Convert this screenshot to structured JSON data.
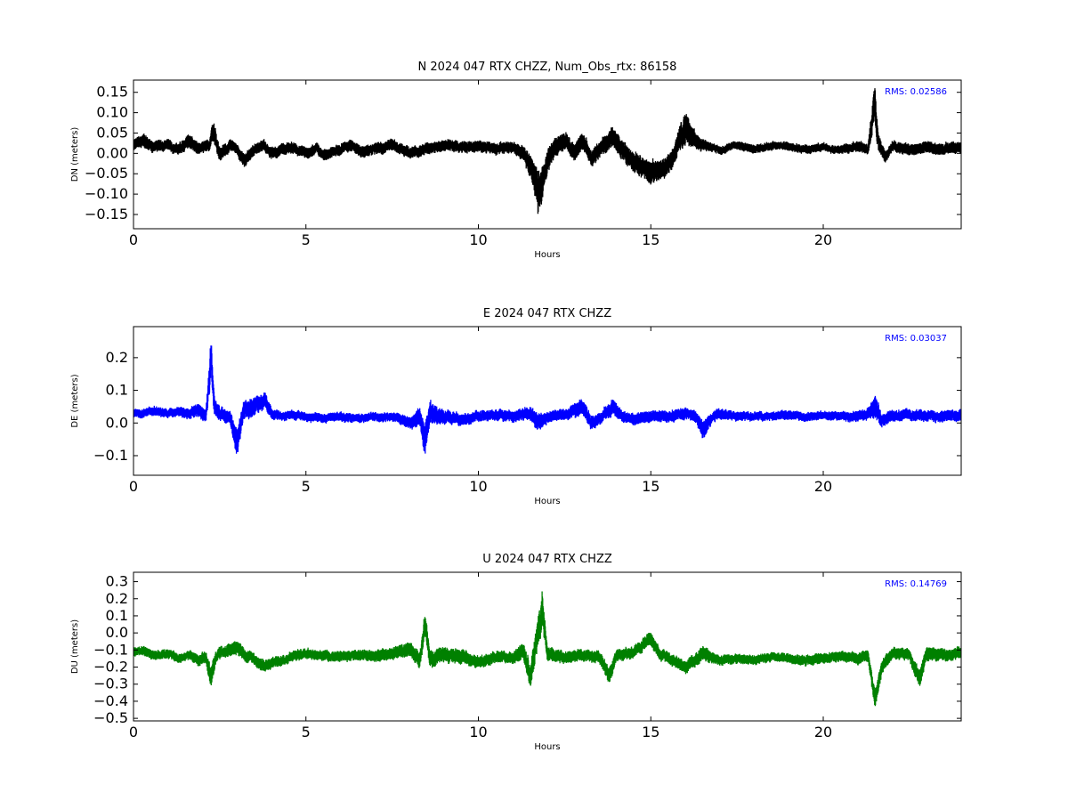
{
  "chart_data": [
    {
      "type": "scatter",
      "title": "N 2024 047 RTX  CHZZ, Num_Obs_rtx: 86158",
      "xlabel": "Hours",
      "ylabel": "DN (meters)",
      "xlim": [
        0,
        24
      ],
      "ylim": [
        -0.185,
        0.18
      ],
      "xticks": [
        0,
        5,
        10,
        15,
        20
      ],
      "yticks": [
        -0.15,
        -0.1,
        -0.05,
        0.0,
        0.05,
        0.1,
        0.15
      ],
      "ytick_labels": [
        "−0.15",
        "−0.10",
        "−0.05",
        "0.00",
        "0.05",
        "0.10",
        "0.15"
      ],
      "color": "#000000",
      "annotation": "RMS:  0.02586",
      "annotation_color": "#0000ff",
      "grid": false,
      "series": [
        {
          "x": [
            0,
            0.3,
            0.6,
            1.0,
            1.3,
            1.6,
            1.9,
            2.2,
            2.3,
            2.5,
            2.8,
            3.0,
            3.2,
            3.5,
            3.8,
            4.0,
            4.3,
            4.6,
            5.0,
            5.3,
            5.6,
            6.0,
            6.3,
            6.6,
            7.0,
            7.5,
            8.0,
            8.5,
            9.0,
            9.5,
            10.0,
            10.5,
            11.0,
            11.3,
            11.6,
            11.75,
            11.85,
            12.0,
            12.2,
            12.5,
            12.8,
            13.0,
            13.3,
            13.6,
            13.9,
            14.2,
            14.5,
            14.8,
            15.0,
            15.3,
            15.6,
            15.8,
            16.0,
            16.2,
            16.5,
            16.8,
            17.0,
            17.5,
            18.0,
            18.5,
            19.0,
            19.5,
            20.0,
            20.5,
            21.0,
            21.3,
            21.5,
            21.6,
            21.8,
            22.0,
            22.5,
            23.0,
            23.5,
            24.0
          ],
          "y": [
            0.02,
            0.03,
            0.015,
            0.02,
            0.01,
            0.03,
            0.01,
            0.02,
            0.06,
            0.0,
            0.02,
            0.01,
            -0.02,
            0.01,
            0.02,
            0.0,
            0.01,
            0.015,
            0.0,
            0.01,
            -0.005,
            0.01,
            0.02,
            0.005,
            0.01,
            0.02,
            0.0,
            0.01,
            0.02,
            0.015,
            0.02,
            0.01,
            0.015,
            0.0,
            -0.05,
            -0.1,
            -0.07,
            -0.02,
            0.01,
            0.03,
            0.0,
            0.035,
            -0.01,
            0.02,
            0.04,
            0.0,
            -0.02,
            -0.03,
            -0.05,
            -0.04,
            -0.02,
            0.03,
            0.06,
            0.04,
            0.02,
            0.015,
            0.01,
            0.02,
            0.01,
            0.02,
            0.015,
            0.01,
            0.015,
            0.01,
            0.02,
            0.01,
            0.12,
            0.03,
            -0.01,
            0.02,
            0.01,
            0.015,
            0.01,
            0.015
          ],
          "spread": [
            0.02,
            0.025,
            0.02,
            0.02,
            0.02,
            0.025,
            0.02,
            0.02,
            0.04,
            0.025,
            0.02,
            0.02,
            0.025,
            0.02,
            0.02,
            0.02,
            0.02,
            0.02,
            0.02,
            0.02,
            0.02,
            0.02,
            0.02,
            0.02,
            0.02,
            0.02,
            0.02,
            0.02,
            0.02,
            0.02,
            0.02,
            0.02,
            0.02,
            0.025,
            0.05,
            0.08,
            0.06,
            0.04,
            0.035,
            0.03,
            0.03,
            0.03,
            0.03,
            0.03,
            0.035,
            0.035,
            0.035,
            0.035,
            0.04,
            0.035,
            0.035,
            0.04,
            0.06,
            0.035,
            0.02,
            0.015,
            0.015,
            0.015,
            0.015,
            0.015,
            0.015,
            0.015,
            0.015,
            0.015,
            0.02,
            0.02,
            0.07,
            0.03,
            0.02,
            0.02,
            0.02,
            0.02,
            0.02,
            0.02
          ]
        }
      ]
    },
    {
      "type": "scatter",
      "title": "E 2024 047 RTX  CHZZ",
      "xlabel": "Hours",
      "ylabel": "DE (meters)",
      "xlim": [
        0,
        24
      ],
      "ylim": [
        -0.16,
        0.295
      ],
      "xticks": [
        0,
        5,
        10,
        15,
        20
      ],
      "yticks": [
        -0.1,
        0.0,
        0.1,
        0.2
      ],
      "ytick_labels": [
        "−0.1",
        "0.0",
        "0.1",
        "0.2"
      ],
      "color": "#0000ff",
      "annotation": "RMS:  0.03037",
      "annotation_color": "#0000ff",
      "grid": false,
      "series": [
        {
          "x": [
            0,
            0.3,
            0.6,
            1.0,
            1.3,
            1.6,
            1.9,
            2.1,
            2.25,
            2.35,
            2.5,
            2.8,
            3.0,
            3.2,
            3.5,
            3.8,
            4.0,
            4.3,
            4.6,
            5.0,
            5.5,
            6.0,
            6.5,
            7.0,
            7.5,
            8.0,
            8.3,
            8.45,
            8.6,
            9.0,
            9.5,
            10.0,
            10.5,
            11.0,
            11.5,
            11.7,
            12.0,
            12.5,
            13.0,
            13.3,
            13.6,
            13.9,
            14.2,
            14.5,
            15.0,
            15.5,
            16.0,
            16.3,
            16.5,
            16.8,
            17.0,
            17.5,
            18.0,
            18.5,
            19.0,
            19.5,
            20.0,
            20.5,
            21.0,
            21.3,
            21.5,
            21.7,
            22.0,
            22.5,
            23.0,
            23.5,
            24.0
          ],
          "y": [
            0.03,
            0.03,
            0.035,
            0.03,
            0.035,
            0.03,
            0.04,
            0.02,
            0.2,
            0.05,
            0.03,
            0.02,
            -0.06,
            0.04,
            0.05,
            0.07,
            0.03,
            0.02,
            0.025,
            0.02,
            0.015,
            0.02,
            0.015,
            0.02,
            0.02,
            0.0,
            0.02,
            -0.06,
            0.04,
            0.02,
            0.01,
            0.02,
            0.025,
            0.02,
            0.03,
            0.0,
            0.02,
            0.025,
            0.05,
            0.0,
            0.02,
            0.05,
            0.02,
            0.01,
            0.02,
            0.02,
            0.03,
            0.02,
            -0.02,
            0.02,
            0.025,
            0.02,
            0.02,
            0.02,
            0.025,
            0.02,
            0.025,
            0.02,
            0.02,
            0.03,
            0.05,
            0.01,
            0.02,
            0.025,
            0.02,
            0.02,
            0.025
          ],
          "spread": [
            0.02,
            0.02,
            0.02,
            0.02,
            0.02,
            0.025,
            0.03,
            0.03,
            0.09,
            0.04,
            0.03,
            0.03,
            0.06,
            0.04,
            0.04,
            0.035,
            0.025,
            0.02,
            0.02,
            0.02,
            0.02,
            0.02,
            0.02,
            0.02,
            0.02,
            0.025,
            0.04,
            0.07,
            0.05,
            0.03,
            0.025,
            0.025,
            0.025,
            0.025,
            0.03,
            0.04,
            0.025,
            0.025,
            0.035,
            0.03,
            0.025,
            0.035,
            0.025,
            0.025,
            0.025,
            0.025,
            0.025,
            0.025,
            0.04,
            0.025,
            0.025,
            0.02,
            0.02,
            0.02,
            0.02,
            0.02,
            0.02,
            0.02,
            0.025,
            0.025,
            0.05,
            0.03,
            0.025,
            0.025,
            0.025,
            0.025,
            0.025
          ]
        }
      ]
    },
    {
      "type": "scatter",
      "title": "U 2024 047 RTX  CHZZ",
      "xlabel": "Hours",
      "ylabel": "DU (meters)",
      "xlim": [
        0,
        24
      ],
      "ylim": [
        -0.515,
        0.355
      ],
      "xticks": [
        0,
        5,
        10,
        15,
        20
      ],
      "yticks": [
        -0.5,
        -0.4,
        -0.3,
        -0.2,
        -0.1,
        0.0,
        0.1,
        0.2,
        0.3
      ],
      "ytick_labels": [
        "−0.5",
        "−0.4",
        "−0.3",
        "−0.2",
        "−0.1",
        "0.0",
        "0.1",
        "0.2",
        "0.3"
      ],
      "color": "#008000",
      "annotation": "RMS:  0.14769",
      "annotation_color": "#0000ff",
      "grid": false,
      "series": [
        {
          "x": [
            0,
            0.3,
            0.6,
            1.0,
            1.3,
            1.6,
            1.9,
            2.1,
            2.25,
            2.4,
            2.7,
            3.0,
            3.2,
            3.5,
            3.8,
            4.0,
            4.5,
            5.0,
            5.5,
            6.0,
            6.5,
            7.0,
            7.5,
            8.0,
            8.3,
            8.45,
            8.6,
            9.0,
            9.5,
            10.0,
            10.5,
            11.0,
            11.3,
            11.5,
            11.7,
            11.85,
            12.0,
            12.5,
            13.0,
            13.5,
            13.8,
            14.0,
            14.5,
            15.0,
            15.3,
            15.6,
            16.0,
            16.5,
            16.8,
            17.0,
            17.5,
            18.0,
            18.5,
            19.0,
            19.5,
            20.0,
            20.5,
            21.0,
            21.3,
            21.5,
            21.7,
            22.0,
            22.5,
            22.8,
            23.0,
            23.5,
            24.0
          ],
          "y": [
            -0.12,
            -0.1,
            -0.13,
            -0.12,
            -0.15,
            -0.13,
            -0.16,
            -0.14,
            -0.25,
            -0.14,
            -0.1,
            -0.08,
            -0.13,
            -0.15,
            -0.2,
            -0.18,
            -0.14,
            -0.12,
            -0.13,
            -0.14,
            -0.13,
            -0.14,
            -0.12,
            -0.1,
            -0.15,
            0.05,
            -0.15,
            -0.13,
            -0.14,
            -0.17,
            -0.14,
            -0.15,
            -0.1,
            -0.25,
            -0.05,
            0.15,
            -0.12,
            -0.14,
            -0.13,
            -0.14,
            -0.25,
            -0.13,
            -0.12,
            -0.03,
            -0.13,
            -0.15,
            -0.2,
            -0.12,
            -0.15,
            -0.16,
            -0.15,
            -0.16,
            -0.14,
            -0.15,
            -0.16,
            -0.15,
            -0.14,
            -0.15,
            -0.14,
            -0.38,
            -0.2,
            -0.12,
            -0.13,
            -0.27,
            -0.12,
            -0.13,
            -0.12
          ],
          "spread": [
            0.04,
            0.04,
            0.04,
            0.04,
            0.04,
            0.04,
            0.05,
            0.05,
            0.09,
            0.05,
            0.05,
            0.06,
            0.05,
            0.05,
            0.05,
            0.045,
            0.045,
            0.045,
            0.045,
            0.045,
            0.045,
            0.05,
            0.05,
            0.06,
            0.07,
            0.1,
            0.07,
            0.06,
            0.06,
            0.05,
            0.05,
            0.05,
            0.07,
            0.1,
            0.12,
            0.15,
            0.06,
            0.05,
            0.05,
            0.05,
            0.07,
            0.05,
            0.05,
            0.06,
            0.05,
            0.05,
            0.05,
            0.06,
            0.05,
            0.045,
            0.04,
            0.04,
            0.04,
            0.04,
            0.045,
            0.045,
            0.045,
            0.05,
            0.05,
            0.08,
            0.06,
            0.05,
            0.05,
            0.07,
            0.06,
            0.05,
            0.05
          ]
        }
      ]
    }
  ]
}
